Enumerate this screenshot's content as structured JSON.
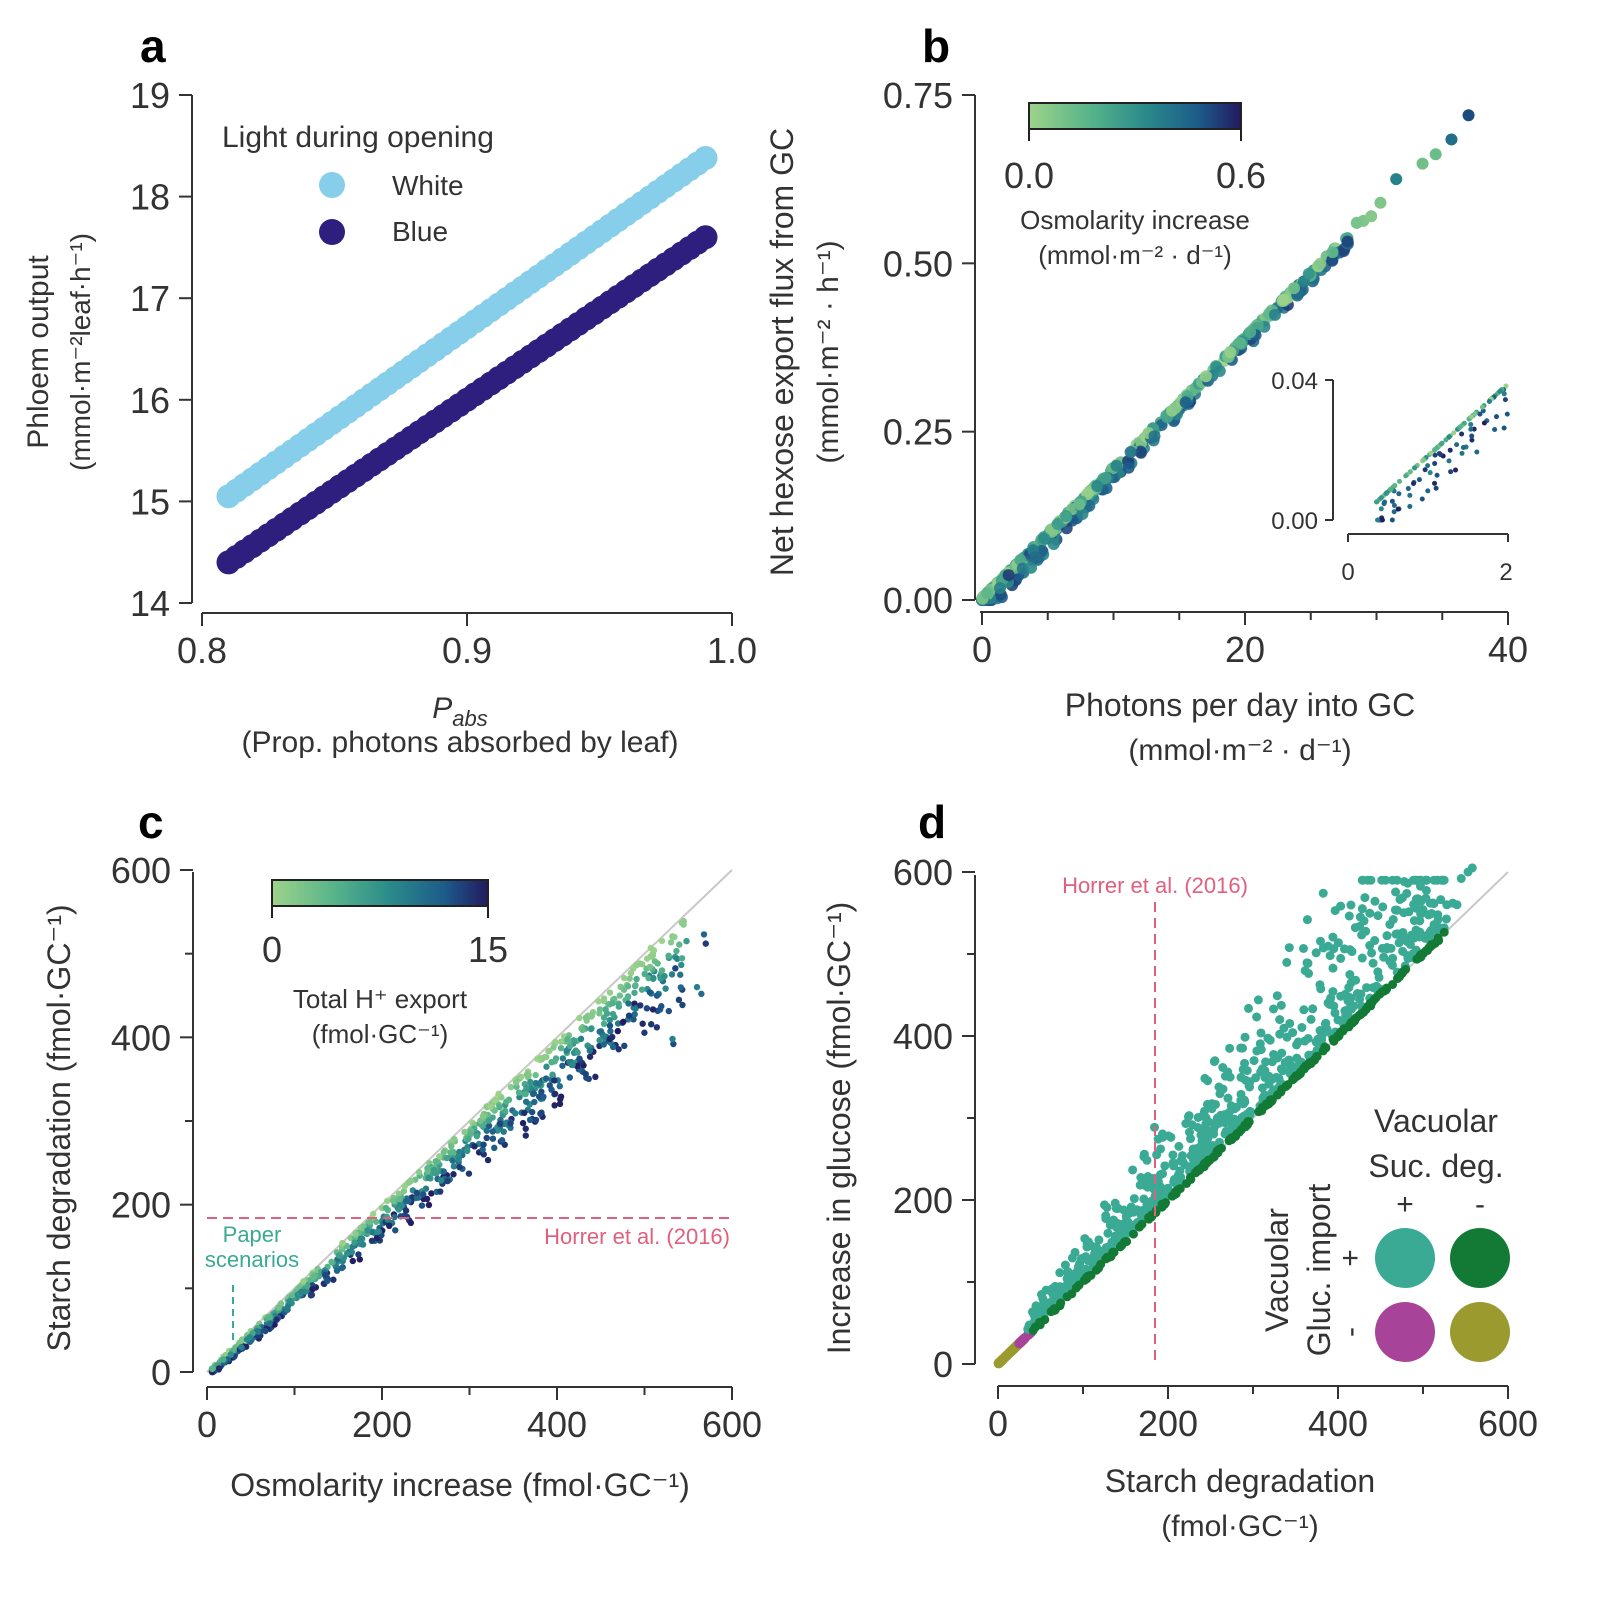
{
  "chart_data": [
    {
      "panel": "a",
      "type": "scatter",
      "xlabel": "P_abs",
      "xlabel_main": "P",
      "xlabel_sub": "abs",
      "xlabel2": "(Prop. photons absorbed by leaf)",
      "ylabel": "Phloem output",
      "ylabel2": "(mmol·m⁻²leaf·h⁻¹)",
      "xlim": [
        0.8,
        1.0
      ],
      "ylim": [
        14,
        19
      ],
      "xticks": [
        "0.8",
        "0.9",
        "1.0"
      ],
      "yticks": [
        "14",
        "15",
        "16",
        "17",
        "18",
        "19"
      ],
      "legend_title": "Light during opening",
      "series": [
        {
          "name": "White",
          "color": "#87ceeb",
          "x_start": 0.81,
          "x_end": 0.99,
          "y_start": 15.05,
          "y_end": 18.38
        },
        {
          "name": "Blue",
          "color": "#2e1f7e",
          "x_start": 0.81,
          "x_end": 0.99,
          "y_start": 14.4,
          "y_end": 17.6
        }
      ]
    },
    {
      "panel": "b",
      "type": "scatter",
      "xlabel": "Photons per day into GC",
      "xlabel2": "(mmol·m⁻² · d⁻¹)",
      "ylabel": "Net hexose export flux from GC",
      "ylabel2": "(mmol·m⁻² · h⁻¹)",
      "xlim": [
        0,
        40
      ],
      "ylim": [
        0,
        0.75
      ],
      "xticks": [
        "0",
        "20",
        "40"
      ],
      "yticks": [
        "0.00",
        "0.25",
        "0.50",
        "0.75"
      ],
      "colorbar": {
        "ticks": [
          "0.0",
          "0.6"
        ],
        "label": "Osmolarity increase",
        "label2": "(mmol·m⁻² · d⁻¹)"
      },
      "trend": {
        "x": [
          0,
          37
        ],
        "y": [
          0,
          0.72
        ]
      },
      "inset": {
        "xticks": [
          "0",
          "2"
        ],
        "yticks": [
          "0.00",
          "0.04"
        ],
        "xlim": [
          0,
          2
        ],
        "ylim": [
          0,
          0.04
        ]
      }
    },
    {
      "panel": "c",
      "type": "scatter",
      "xlabel": "Osmolarity increase (fmol·GC⁻¹)",
      "ylabel": "Starch degradation (fmol·GC⁻¹)",
      "xlim": [
        0,
        600
      ],
      "ylim": [
        0,
        600
      ],
      "xticks": [
        "0",
        "200",
        "400",
        "600"
      ],
      "yticks": [
        "0",
        "200",
        "400",
        "600"
      ],
      "colorbar": {
        "ticks": [
          "0",
          "15"
        ],
        "label": "Total H⁺ export",
        "label2": "(fmol·GC⁻¹)"
      },
      "hline": {
        "y": 185,
        "label": "Horrer et al. (2016)",
        "color": "#e0607e"
      },
      "vmark": {
        "x": 28,
        "label1": "Paper",
        "label2": "scenarios",
        "color": "#3aaa94"
      }
    },
    {
      "panel": "d",
      "type": "scatter",
      "xlabel": "Starch degradation",
      "xlabel2": "(fmol·GC⁻¹)",
      "ylabel": "Increase in glucose (fmol·GC⁻¹)",
      "xlim": [
        0,
        600
      ],
      "ylim": [
        0,
        600
      ],
      "xticks": [
        "0",
        "200",
        "400",
        "600"
      ],
      "yticks": [
        "0",
        "200",
        "400",
        "600"
      ],
      "vline": {
        "x": 185,
        "label": "Horrer et al. (2016)",
        "color": "#e0607e"
      },
      "legend": {
        "col_title1": "Vacuolar",
        "col_title2": "Suc. deg.",
        "row_title1": "Vacuolar",
        "row_title2": "Gluc. import",
        "plus": "+",
        "minus": "-",
        "colors": {
          "pp": "#3aaa94",
          "pm": "#137a35",
          "mp": "#a8439a",
          "mm": "#9a9a2e"
        }
      }
    }
  ],
  "panel_labels": [
    "a",
    "b",
    "c",
    "d"
  ]
}
